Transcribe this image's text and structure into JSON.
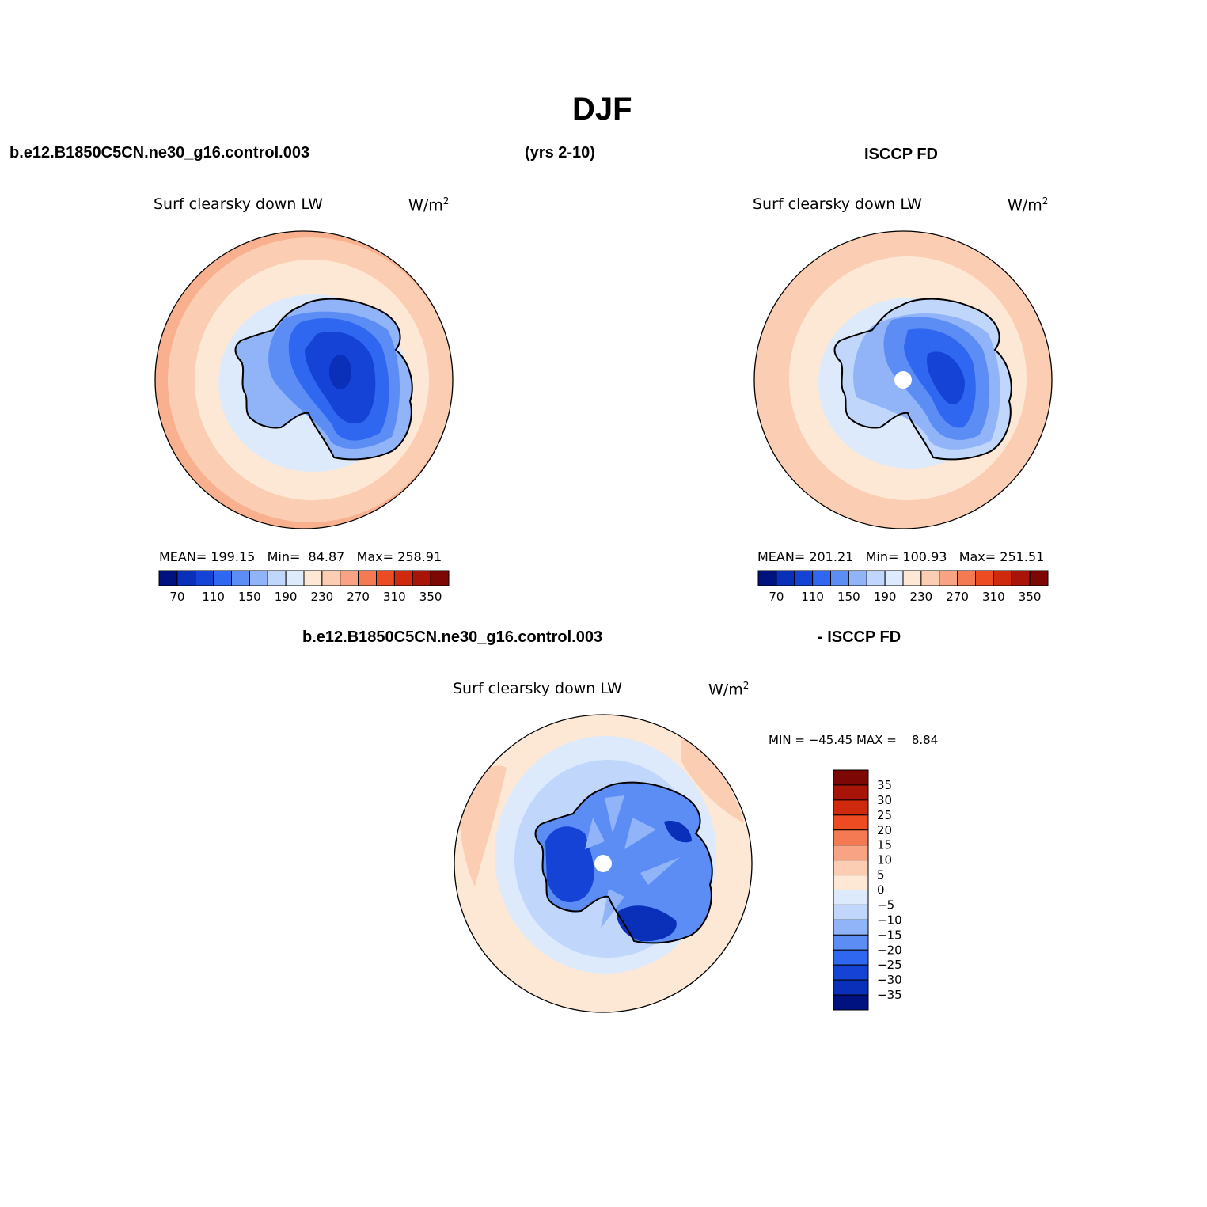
{
  "header": {
    "season": "DJF",
    "case_name": "b.e12.B1850C5CN.ne30_g16.control.003",
    "years": "(yrs 2-10)",
    "obs_name": "ISCCP FD",
    "diff_case": "b.e12.B1850C5CN.ne30_g16.control.003",
    "diff_obs": "- ISCCP FD"
  },
  "panels": {
    "model": {
      "variable": "Surf clearsky down LW",
      "units": "W/m",
      "units_sup": "2",
      "stats": "MEAN= 199.15   Min=  84.87   Max= 258.91"
    },
    "obs": {
      "variable": "Surf clearsky down LW",
      "units": "W/m",
      "units_sup": "2",
      "stats": "MEAN= 201.21   Min= 100.93   Max= 251.51"
    },
    "diff": {
      "variable": "Surf clearsky down LW",
      "units": "W/m",
      "units_sup": "2",
      "stats": "MIN = −45.45 MAX =    8.84"
    }
  },
  "colorbars": {
    "abs_colors": [
      "#00127f",
      "#0a2fb8",
      "#1443d6",
      "#2f67f0",
      "#5b8df5",
      "#91b4f8",
      "#c0d6fb",
      "#dceafc",
      "#fde8d6",
      "#fbcdb3",
      "#f7a384",
      "#f47a53",
      "#ed4c23",
      "#cf2a0d",
      "#a81408",
      "#7d0704"
    ],
    "abs_labels": [
      "70",
      "110",
      "150",
      "190",
      "230",
      "270",
      "310",
      "350"
    ],
    "diff_colors": [
      "#00127f",
      "#0a2fb8",
      "#1443d6",
      "#2f67f0",
      "#5b8df5",
      "#91b4f8",
      "#c0d6fb",
      "#dceafc",
      "#fde8d6",
      "#fbcdb3",
      "#f7a384",
      "#f47a53",
      "#ed4c23",
      "#cf2a0d",
      "#a81408",
      "#7d0704"
    ],
    "diff_labels": [
      "35",
      "30",
      "25",
      "20",
      "15",
      "10",
      "5",
      "0",
      "−5",
      "−10",
      "−15",
      "−20",
      "−25",
      "−30",
      "−35"
    ]
  }
}
